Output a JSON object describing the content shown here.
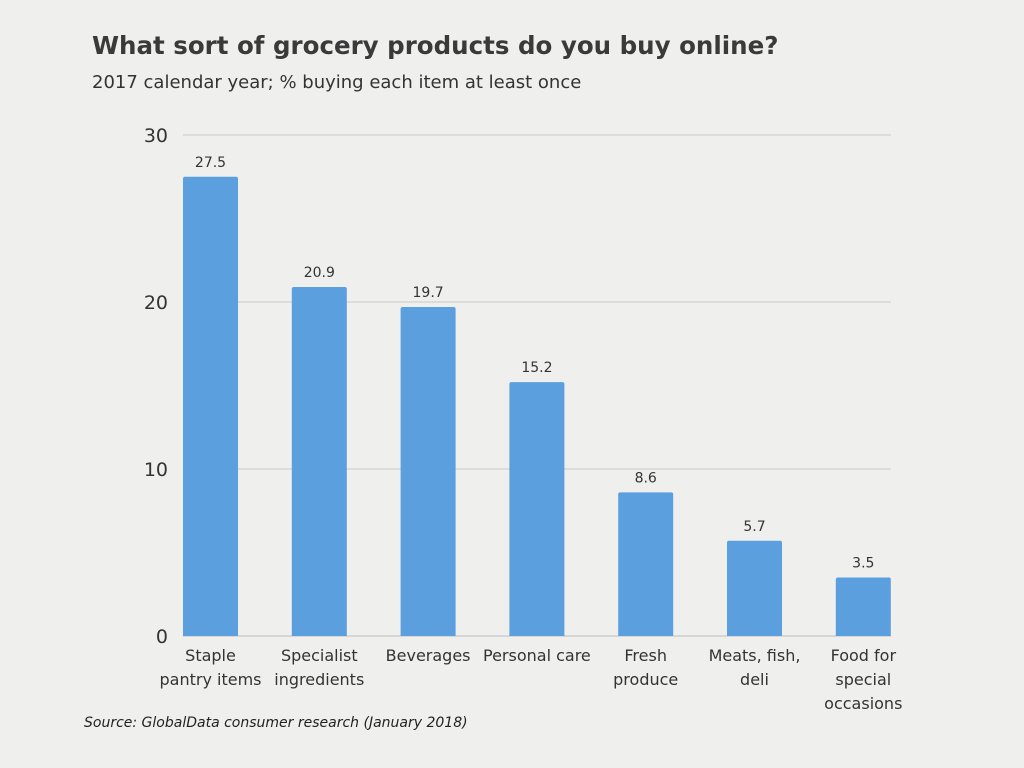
{
  "title": "What sort of grocery products do you buy online?",
  "subtitle": "2017 calendar year; % buying each item at least once",
  "source": "Source: GlobalData consumer research (January 2018)",
  "colors": {
    "bar": "#5b9fde",
    "grid": "#c8c8c8",
    "axis": "#bdbdbd",
    "text": "#333333",
    "background": "#efefee"
  },
  "chart_data": {
    "type": "bar",
    "title": "What sort of grocery products do you buy online?",
    "subtitle": "2017 calendar year; % buying each item at least once",
    "xlabel": "",
    "ylabel": "",
    "ylim": [
      0,
      30
    ],
    "yticks": [
      0,
      10,
      20,
      30
    ],
    "grid": true,
    "legend": "none",
    "categories": [
      [
        "Staple",
        "pantry items"
      ],
      [
        "Specialist",
        "ingredients"
      ],
      [
        "Beverages"
      ],
      [
        "Personal care"
      ],
      [
        "Fresh",
        "produce"
      ],
      [
        "Meats, fish,",
        "deli"
      ],
      [
        "Food for",
        "special",
        "occasions"
      ]
    ],
    "values": [
      27.5,
      20.9,
      19.7,
      15.2,
      8.6,
      5.7,
      3.5
    ],
    "value_labels": [
      "27.5",
      "20.9",
      "19.7",
      "15.2",
      "8.6",
      "5.7",
      "3.5"
    ]
  }
}
